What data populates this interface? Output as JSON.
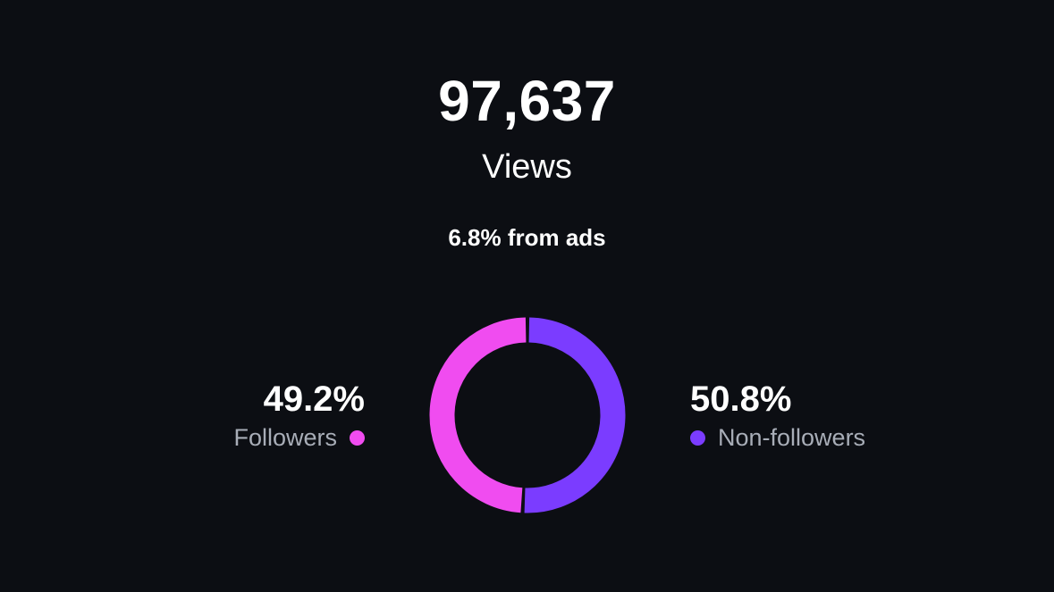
{
  "summary": {
    "views_total": "97,637",
    "views_label": "Views",
    "ads_note": "6.8% from ads"
  },
  "breakdown": {
    "followers": {
      "percent_label": "49.2%",
      "label": "Followers",
      "share": 49.2,
      "color": "#f04cf0"
    },
    "non_followers": {
      "percent_label": "50.8%",
      "label": "Non-followers",
      "share": 50.8,
      "color": "#7b3cff"
    }
  },
  "chart_data": {
    "type": "pie",
    "categories": [
      "Followers",
      "Non-followers"
    ],
    "values": [
      49.2,
      50.8
    ],
    "colors": [
      "#f04cf0",
      "#7b3cff"
    ]
  }
}
